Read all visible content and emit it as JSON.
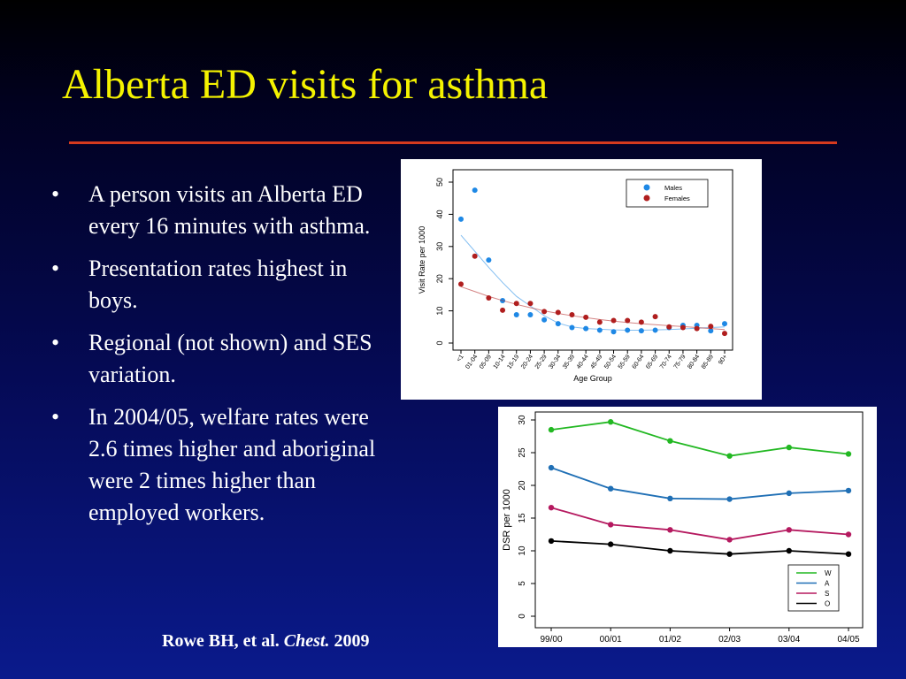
{
  "slide": {
    "title": "Alberta ED visits for asthma",
    "title_color": "#f4f200",
    "rule_color": "#d63a1e",
    "bullet_symbol": "•",
    "bullets": [
      "A person visits an Alberta ED every 16 minutes with asthma.",
      "Presentation rates highest in boys.",
      "Regional (not shown) and SES variation.",
      "In 2004/05, welfare rates were 2.6 times higher and aboriginal were 2 times higher than employed workers."
    ],
    "citation": {
      "authors": "Rowe BH, et al.",
      "journal": "Chest.",
      "year": "2009"
    }
  },
  "chart_data": [
    {
      "type": "scatter",
      "xlabel": "Age Group",
      "ylabel": "Visit Rate per 1000",
      "ylim": [
        0,
        50
      ],
      "yticks": [
        0,
        10,
        20,
        30,
        40,
        50
      ],
      "categories": [
        "<1",
        "01-04",
        "05-09",
        "10-14",
        "15-19",
        "20-24",
        "25-29",
        "30-34",
        "35-39",
        "40-44",
        "45-49",
        "50-54",
        "55-59",
        "60-64",
        "65-69",
        "70-74",
        "75-79",
        "80-84",
        "85-89",
        "90+"
      ],
      "legend_position": "top-right",
      "series": [
        {
          "name": "Males",
          "color": "#1e88e5",
          "values": [
            38.5,
            47.5,
            25.8,
            13.2,
            8.8,
            8.8,
            7.2,
            6.0,
            4.8,
            4.5,
            4.0,
            3.5,
            4.0,
            3.8,
            4.0,
            4.8,
            5.5,
            5.5,
            3.8,
            6.0
          ],
          "trend": [
            33.5,
            28.5,
            23.5,
            18.8,
            14.5,
            11.5,
            8.5,
            6.2,
            5.0,
            4.5,
            4.3,
            4.1,
            4.0,
            4.0,
            4.1,
            4.2,
            4.4,
            4.6,
            4.8,
            5.0
          ]
        },
        {
          "name": "Females",
          "color": "#b01e1e",
          "values": [
            18.3,
            27.0,
            14.0,
            10.2,
            12.3,
            12.3,
            9.8,
            9.5,
            8.8,
            8.0,
            6.5,
            7.0,
            7.0,
            6.5,
            8.2,
            5.0,
            4.8,
            4.5,
            5.2,
            3.0
          ],
          "trend": [
            17.5,
            16.0,
            14.5,
            13.2,
            12.0,
            11.0,
            10.0,
            9.2,
            8.5,
            7.9,
            7.3,
            6.8,
            6.4,
            6.0,
            5.7,
            5.4,
            5.1,
            4.8,
            4.5,
            4.2
          ]
        }
      ]
    },
    {
      "type": "line",
      "ylabel": "DSR per 1000",
      "ylim": [
        0,
        30
      ],
      "yticks": [
        0,
        5,
        10,
        15,
        20,
        25,
        30
      ],
      "categories": [
        "99/00",
        "00/01",
        "01/02",
        "02/03",
        "03/04",
        "04/05"
      ],
      "legend_position": "bottom-right",
      "series": [
        {
          "name": "W",
          "color": "#22b822",
          "values": [
            28.5,
            29.7,
            26.8,
            24.5,
            25.8,
            24.8
          ]
        },
        {
          "name": "A",
          "color": "#1f6fb5",
          "values": [
            22.7,
            19.5,
            18.0,
            17.9,
            18.8,
            19.2
          ]
        },
        {
          "name": "S",
          "color": "#b5195f",
          "values": [
            16.6,
            14.0,
            13.2,
            11.7,
            13.2,
            12.5
          ]
        },
        {
          "name": "O",
          "color": "#000000",
          "values": [
            11.5,
            11.0,
            10.0,
            9.5,
            10.0,
            9.5
          ]
        }
      ]
    }
  ]
}
